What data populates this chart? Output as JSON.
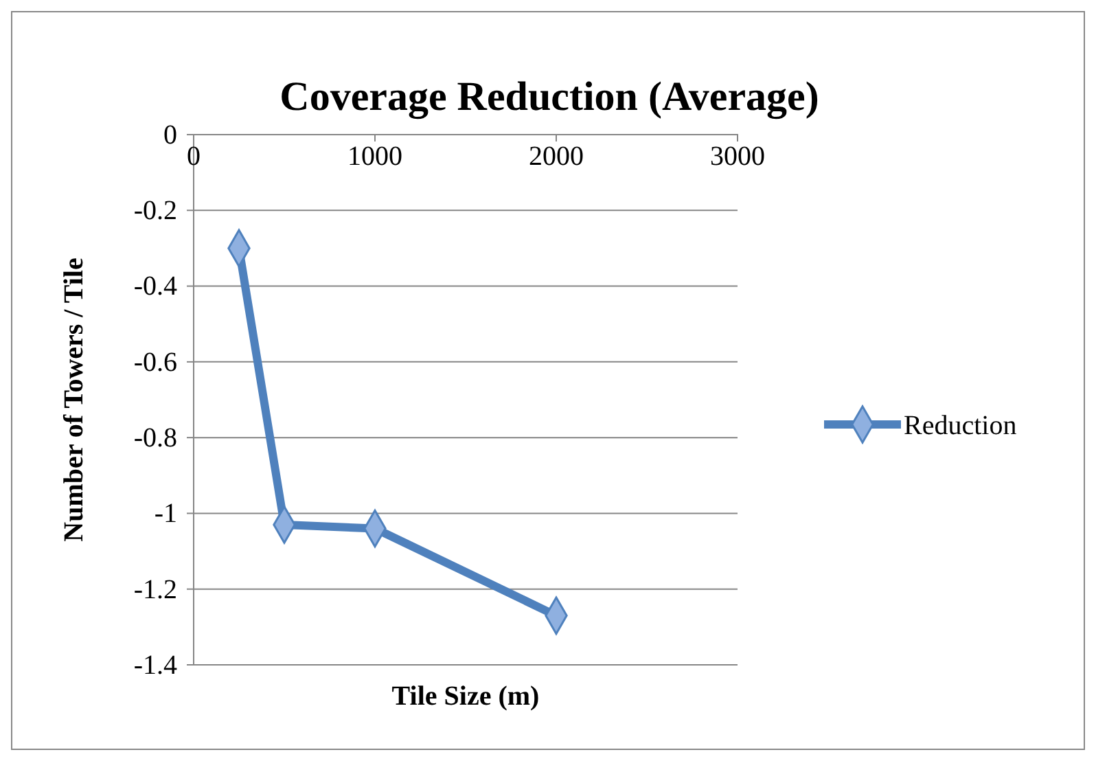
{
  "chart_data": {
    "type": "line",
    "title": "Coverage Reduction (Average)",
    "xlabel": "Tile Size (m)",
    "ylabel": "Number of Towers / Tile",
    "x": [
      250,
      500,
      1000,
      2000
    ],
    "series": [
      {
        "name": "Reduction",
        "color": "#4f81bd",
        "values": [
          -0.3,
          -1.03,
          -1.04,
          -1.27
        ]
      }
    ],
    "xlim": [
      0,
      3000
    ],
    "xticks": [
      0,
      1000,
      2000,
      3000
    ],
    "ylim": [
      -1.4,
      0
    ],
    "yticks": [
      -1.4,
      -1.2,
      -1,
      -0.8,
      -0.6,
      -0.4,
      -0.2,
      0
    ],
    "grid": "y",
    "legend": "right",
    "marker": "diamond",
    "line_style": "solid"
  }
}
